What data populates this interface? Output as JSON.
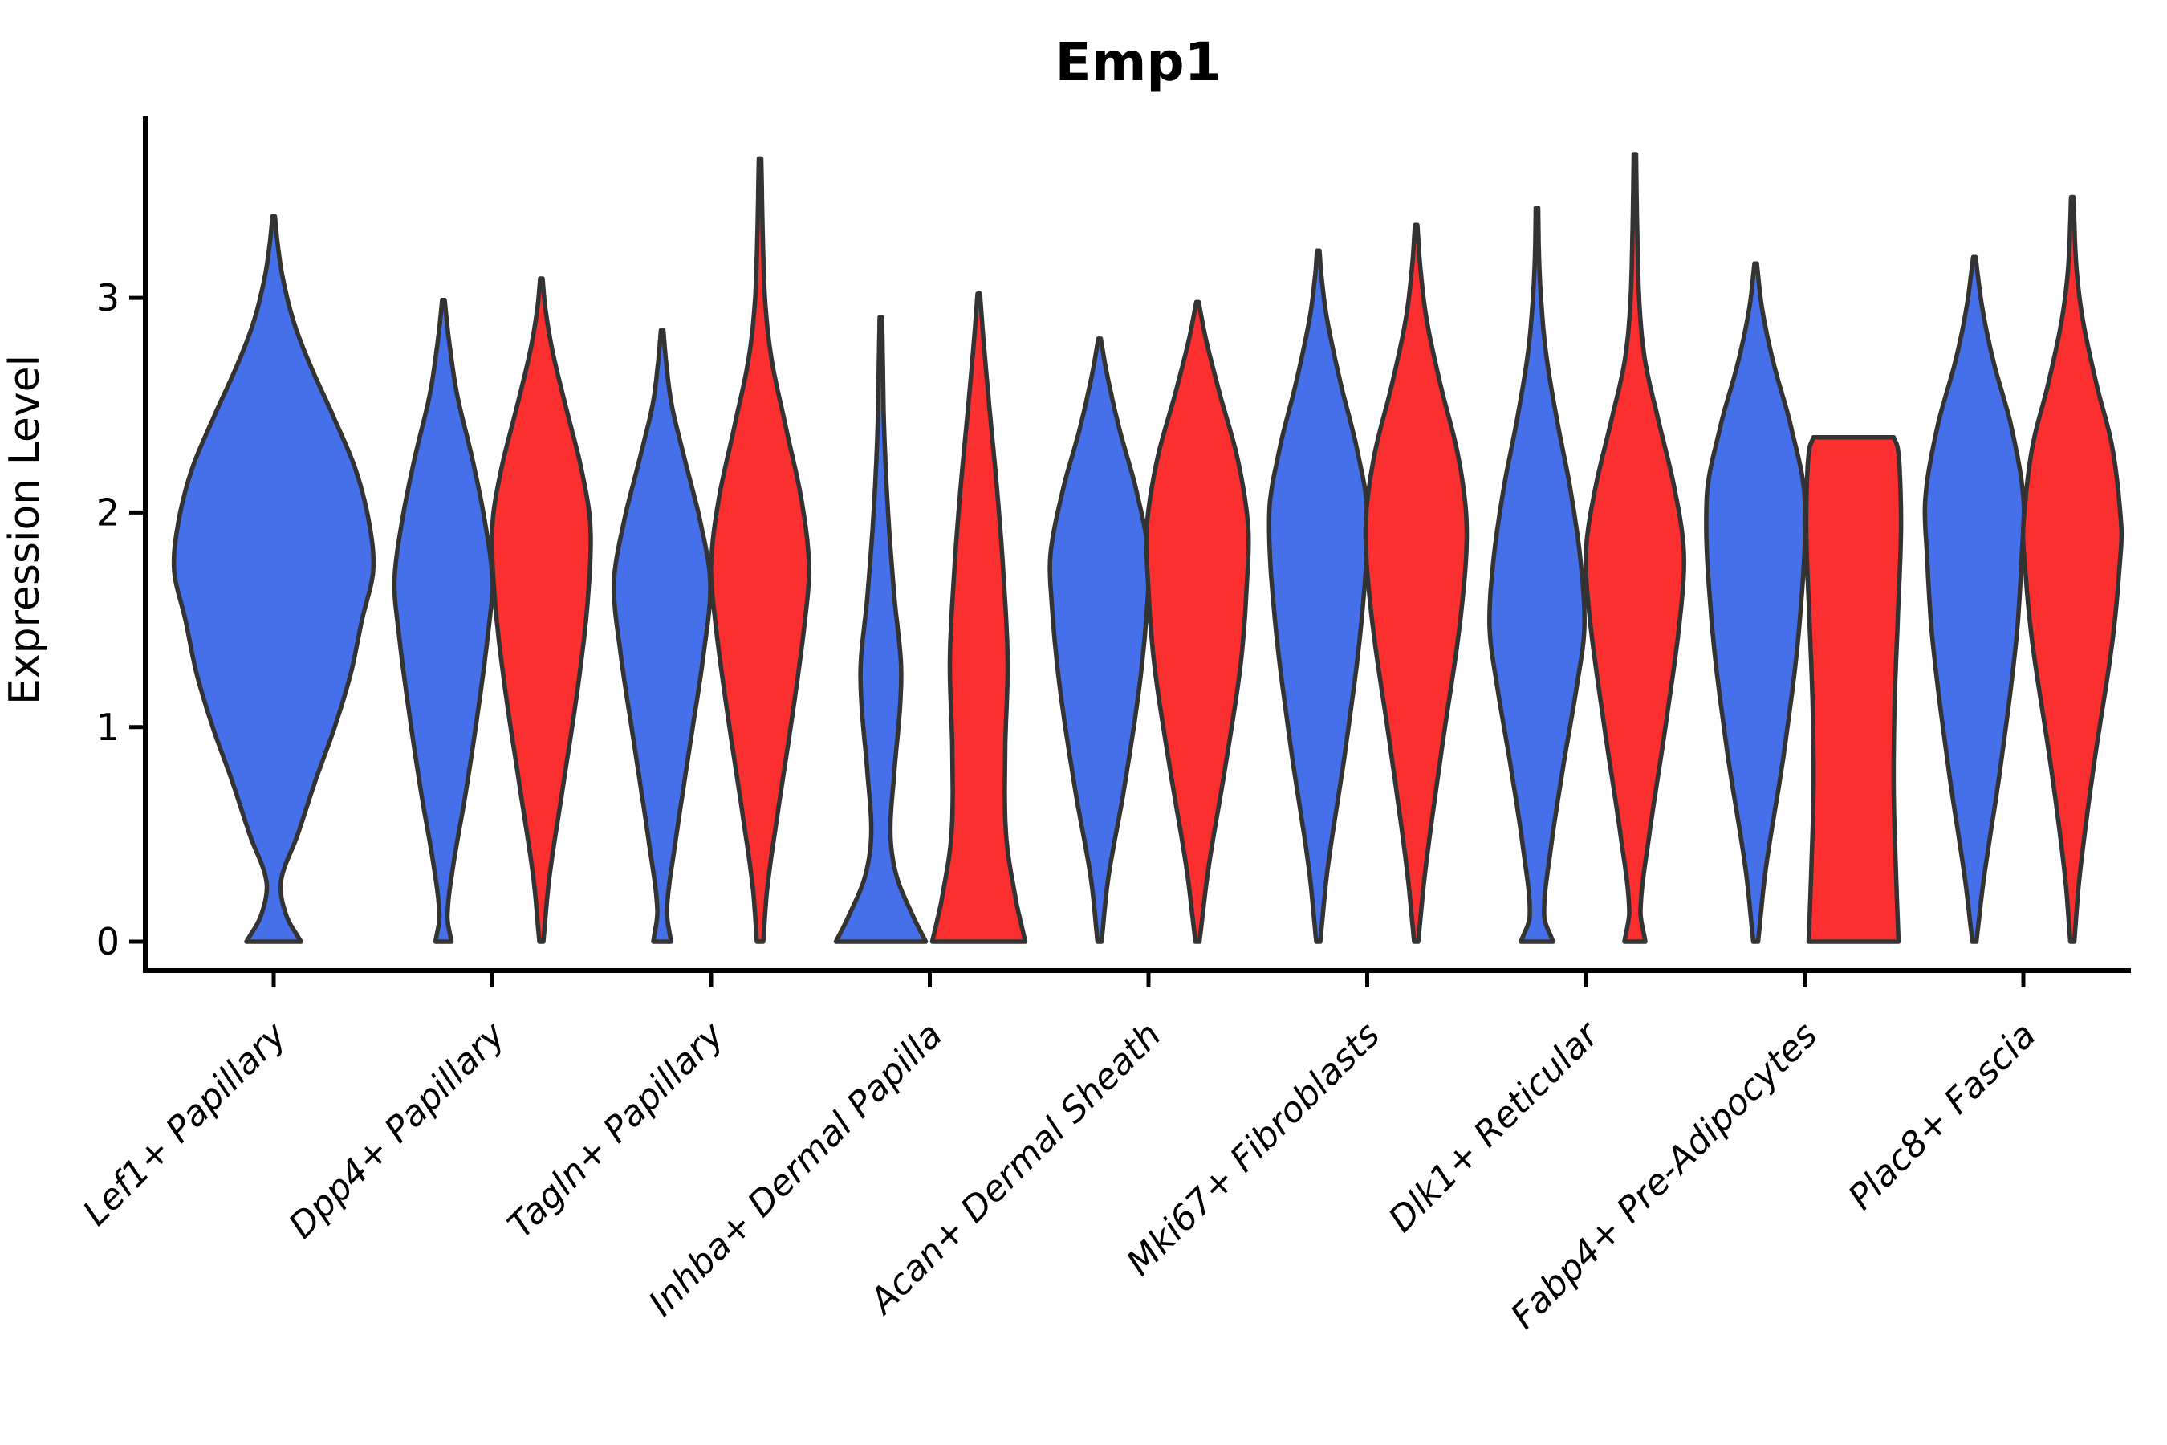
{
  "colors": {
    "blue": "#4570EA",
    "red": "#FB2F2F",
    "outline": "#333333",
    "axis": "#000000"
  },
  "chart_data": {
    "type": "violin",
    "title": "Emp1",
    "ylabel": "Expression Level",
    "xlabel": "",
    "ylim": [
      0,
      3.85
    ],
    "yticks": [
      0,
      1,
      2,
      3
    ],
    "grid": false,
    "legend": "none",
    "x_label_rotation_deg": 45,
    "split_groups": [
      "blue",
      "red"
    ],
    "categories": [
      "Lef1+ Papillary",
      "Dpp4+ Papillary",
      "Tagln+ Papillary",
      "Inhba+ Dermal Papilla",
      "Acan+ Dermal Sheath",
      "Mki67+ Fibroblasts",
      "Dlk1+ Reticular",
      "Fabp4+ Pre-Adipocytes",
      "Plac8+ Fascia"
    ],
    "violins": [
      {
        "category": "Lef1+ Papillary",
        "group": "blue",
        "position": "center",
        "max_expression": 3.38,
        "mode_expression": 1.73,
        "profile": [
          [
            0,
            34
          ],
          [
            0.12,
            16
          ],
          [
            0.28,
            9
          ],
          [
            0.5,
            30
          ],
          [
            0.75,
            52
          ],
          [
            1.0,
            76
          ],
          [
            1.25,
            96
          ],
          [
            1.5,
            110
          ],
          [
            1.73,
            124
          ],
          [
            1.95,
            119
          ],
          [
            2.2,
            102
          ],
          [
            2.45,
            74
          ],
          [
            2.7,
            44
          ],
          [
            2.9,
            24
          ],
          [
            3.1,
            11
          ],
          [
            3.25,
            5
          ],
          [
            3.38,
            1.5
          ]
        ]
      },
      {
        "category": "Dpp4+ Papillary",
        "group": "blue",
        "position": "left",
        "max_expression": 2.99,
        "mode_expression": 1.68,
        "profile": [
          [
            0,
            10
          ],
          [
            0.12,
            5
          ],
          [
            0.35,
            12
          ],
          [
            0.7,
            28
          ],
          [
            1.1,
            44
          ],
          [
            1.45,
            56
          ],
          [
            1.68,
            61
          ],
          [
            1.95,
            52
          ],
          [
            2.25,
            36
          ],
          [
            2.55,
            17
          ],
          [
            2.8,
            7
          ],
          [
            2.99,
            1.5
          ]
        ]
      },
      {
        "category": "Dpp4+ Papillary",
        "group": "red",
        "position": "right",
        "max_expression": 3.09,
        "mode_expression": 1.94,
        "profile": [
          [
            0,
            2.5
          ],
          [
            0.3,
            10
          ],
          [
            0.7,
            26
          ],
          [
            1.2,
            46
          ],
          [
            1.6,
            58
          ],
          [
            1.94,
            61
          ],
          [
            2.2,
            50
          ],
          [
            2.5,
            30
          ],
          [
            2.75,
            14
          ],
          [
            2.95,
            5
          ],
          [
            3.09,
            1.5
          ]
        ]
      },
      {
        "category": "Tagln+ Papillary",
        "group": "blue",
        "position": "left",
        "max_expression": 2.85,
        "mode_expression": 1.67,
        "profile": [
          [
            0,
            11
          ],
          [
            0.15,
            6
          ],
          [
            0.45,
            16
          ],
          [
            0.9,
            34
          ],
          [
            1.35,
            52
          ],
          [
            1.67,
            60
          ],
          [
            1.95,
            48
          ],
          [
            2.25,
            28
          ],
          [
            2.5,
            12
          ],
          [
            2.7,
            5
          ],
          [
            2.85,
            1.5
          ]
        ]
      },
      {
        "category": "Tagln+ Papillary",
        "group": "red",
        "position": "right",
        "max_expression": 3.65,
        "mode_expression": 1.75,
        "profile": [
          [
            0,
            4
          ],
          [
            0.25,
            9
          ],
          [
            0.6,
            22
          ],
          [
            1.1,
            42
          ],
          [
            1.5,
            56
          ],
          [
            1.75,
            61
          ],
          [
            2.05,
            52
          ],
          [
            2.4,
            32
          ],
          [
            2.7,
            15
          ],
          [
            2.95,
            7
          ],
          [
            3.2,
            4
          ],
          [
            3.65,
            1.5
          ]
        ]
      },
      {
        "category": "Inhba+ Dermal Papilla",
        "group": "blue",
        "position": "left",
        "max_expression": 2.91,
        "mode_expression": 0.0,
        "profile": [
          [
            0,
            56
          ],
          [
            0.12,
            40
          ],
          [
            0.3,
            20
          ],
          [
            0.5,
            12
          ],
          [
            0.8,
            17
          ],
          [
            1.1,
            24
          ],
          [
            1.3,
            25
          ],
          [
            1.6,
            17
          ],
          [
            2.0,
            9
          ],
          [
            2.4,
            4
          ],
          [
            2.7,
            2.5
          ],
          [
            2.91,
            1.5
          ]
        ]
      },
      {
        "category": "Inhba+ Dermal Papilla",
        "group": "red",
        "position": "right",
        "max_expression": 3.02,
        "mode_expression": 0.0,
        "profile": [
          [
            0,
            58
          ],
          [
            0.2,
            46
          ],
          [
            0.5,
            34
          ],
          [
            0.9,
            33
          ],
          [
            1.3,
            36
          ],
          [
            1.7,
            31
          ],
          [
            2.1,
            23
          ],
          [
            2.5,
            13
          ],
          [
            2.8,
            6
          ],
          [
            3.02,
            1.5
          ]
        ]
      },
      {
        "category": "Acan+ Dermal Sheath",
        "group": "blue",
        "position": "left",
        "max_expression": 2.81,
        "mode_expression": 1.81,
        "profile": [
          [
            0,
            2.5
          ],
          [
            0.3,
            11
          ],
          [
            0.7,
            30
          ],
          [
            1.2,
            50
          ],
          [
            1.6,
            60
          ],
          [
            1.81,
            61
          ],
          [
            2.1,
            46
          ],
          [
            2.4,
            24
          ],
          [
            2.65,
            9
          ],
          [
            2.81,
            1.5
          ]
        ]
      },
      {
        "category": "Acan+ Dermal Sheath",
        "group": "red",
        "position": "right",
        "max_expression": 2.98,
        "mode_expression": 1.94,
        "profile": [
          [
            0,
            2.5
          ],
          [
            0.35,
            14
          ],
          [
            0.8,
            34
          ],
          [
            1.3,
            54
          ],
          [
            1.7,
            62
          ],
          [
            1.94,
            63
          ],
          [
            2.25,
            50
          ],
          [
            2.55,
            28
          ],
          [
            2.8,
            11
          ],
          [
            2.98,
            1.5
          ]
        ]
      },
      {
        "category": "Mki67+ Fibroblasts",
        "group": "blue",
        "position": "left",
        "max_expression": 3.22,
        "mode_expression": 2.0,
        "profile": [
          [
            0,
            2.5
          ],
          [
            0.35,
            12
          ],
          [
            0.9,
            34
          ],
          [
            1.5,
            54
          ],
          [
            2.0,
            61
          ],
          [
            2.3,
            48
          ],
          [
            2.6,
            28
          ],
          [
            2.9,
            11
          ],
          [
            3.1,
            4
          ],
          [
            3.22,
            1.5
          ]
        ]
      },
      {
        "category": "Mki67+ Fibroblasts",
        "group": "red",
        "position": "right",
        "max_expression": 3.34,
        "mode_expression": 1.92,
        "profile": [
          [
            0,
            2.5
          ],
          [
            0.35,
            12
          ],
          [
            0.9,
            32
          ],
          [
            1.5,
            55
          ],
          [
            1.92,
            63
          ],
          [
            2.25,
            53
          ],
          [
            2.6,
            30
          ],
          [
            2.9,
            13
          ],
          [
            3.15,
            5
          ],
          [
            3.34,
            1.5
          ]
        ]
      },
      {
        "category": "Dlk1+ Reticular",
        "group": "blue",
        "position": "left",
        "max_expression": 3.42,
        "mode_expression": 1.46,
        "profile": [
          [
            0,
            20
          ],
          [
            0.12,
            9
          ],
          [
            0.4,
            16
          ],
          [
            0.8,
            32
          ],
          [
            1.2,
            50
          ],
          [
            1.46,
            59
          ],
          [
            1.75,
            55
          ],
          [
            2.1,
            42
          ],
          [
            2.45,
            24
          ],
          [
            2.75,
            11
          ],
          [
            3.0,
            5
          ],
          [
            3.2,
            2.5
          ],
          [
            3.42,
            1.5
          ]
        ]
      },
      {
        "category": "Dlk1+ Reticular",
        "group": "red",
        "position": "right",
        "max_expression": 3.67,
        "mode_expression": 1.81,
        "profile": [
          [
            0,
            13
          ],
          [
            0.15,
            7
          ],
          [
            0.5,
            18
          ],
          [
            1.0,
            38
          ],
          [
            1.5,
            56
          ],
          [
            1.81,
            61
          ],
          [
            2.1,
            50
          ],
          [
            2.45,
            28
          ],
          [
            2.7,
            13
          ],
          [
            2.95,
            6
          ],
          [
            3.3,
            3
          ],
          [
            3.67,
            1.5
          ]
        ]
      },
      {
        "category": "Fabp4+ Pre-Adipocytes",
        "group": "blue",
        "position": "left",
        "max_expression": 3.16,
        "mode_expression": 2.07,
        "profile": [
          [
            0,
            3
          ],
          [
            0.35,
            13
          ],
          [
            0.9,
            36
          ],
          [
            1.5,
            55
          ],
          [
            2.07,
            61
          ],
          [
            2.4,
            44
          ],
          [
            2.7,
            22
          ],
          [
            2.95,
            8
          ],
          [
            3.16,
            1.5
          ]
        ]
      },
      {
        "category": "Fabp4+ Pre-Adipocytes",
        "group": "red",
        "position": "right",
        "max_expression": 2.35,
        "mode_expression": 1.9,
        "flat_top": true,
        "profile": [
          [
            0,
            56
          ],
          [
            0.3,
            53
          ],
          [
            0.7,
            50
          ],
          [
            1.1,
            51
          ],
          [
            1.5,
            55
          ],
          [
            1.9,
            59
          ],
          [
            2.15,
            58
          ],
          [
            2.3,
            55
          ],
          [
            2.35,
            50
          ]
        ]
      },
      {
        "category": "Plac8+ Fascia",
        "group": "blue",
        "position": "left",
        "max_expression": 3.19,
        "mode_expression": 2.07,
        "profile": [
          [
            0,
            2.5
          ],
          [
            0.3,
            12
          ],
          [
            0.8,
            32
          ],
          [
            1.4,
            52
          ],
          [
            1.8,
            59
          ],
          [
            2.07,
            61
          ],
          [
            2.4,
            46
          ],
          [
            2.7,
            24
          ],
          [
            2.95,
            10
          ],
          [
            3.19,
            1.5
          ]
        ]
      },
      {
        "category": "Plac8+ Fascia",
        "group": "red",
        "position": "right",
        "max_expression": 3.47,
        "mode_expression": 1.94,
        "profile": [
          [
            0,
            2.5
          ],
          [
            0.3,
            9
          ],
          [
            0.8,
            26
          ],
          [
            1.4,
            50
          ],
          [
            1.8,
            60
          ],
          [
            1.94,
            61
          ],
          [
            2.3,
            50
          ],
          [
            2.6,
            30
          ],
          [
            2.9,
            13
          ],
          [
            3.15,
            5
          ],
          [
            3.47,
            1.5
          ]
        ]
      }
    ]
  }
}
